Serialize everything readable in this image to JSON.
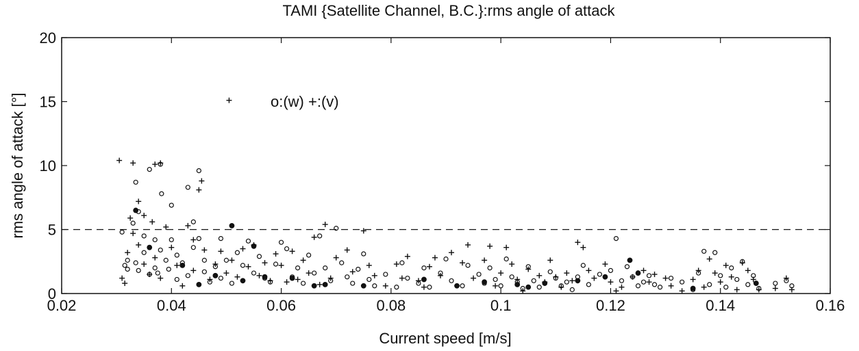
{
  "chart_data": {
    "type": "scatter",
    "title": "TAMI {Satellite Channel, B.C.}:rms angle of attack",
    "xlabel": "Current speed  [m/s]",
    "ylabel": "rms angle of attack  [°]",
    "xlim": [
      0.02,
      0.16
    ],
    "ylim": [
      0,
      20
    ],
    "x_ticks": [
      "0.02",
      "0.04",
      "0.06",
      "0.08",
      "0.1",
      "0.12",
      "0.14",
      "0.16"
    ],
    "y_ticks": [
      "0",
      "5",
      "10",
      "15",
      "20"
    ],
    "reference_line": {
      "y": 5,
      "style": "dashed"
    },
    "legend": {
      "text": "o:(w)  +:(v)",
      "plus_marker_at": [
        0.0505,
        15.1
      ],
      "position": "upper-center"
    },
    "colors": {
      "marker": "#111111",
      "axes": "#111111",
      "background": "#ffffff"
    },
    "series": [
      {
        "label": "w",
        "marker": "o",
        "points": [
          [
            0.031,
            4.8
          ],
          [
            0.0315,
            2.2
          ],
          [
            0.032,
            2.6
          ],
          [
            0.032,
            1.9
          ],
          [
            0.033,
            5.5
          ],
          [
            0.0335,
            8.7
          ],
          [
            0.0335,
            2.4
          ],
          [
            0.034,
            6.4
          ],
          [
            0.034,
            1.8
          ],
          [
            0.035,
            4.5
          ],
          [
            0.035,
            3.2
          ],
          [
            0.036,
            9.7
          ],
          [
            0.036,
            1.5
          ],
          [
            0.037,
            4.2
          ],
          [
            0.037,
            2.0
          ],
          [
            0.0375,
            1.6
          ],
          [
            0.038,
            10.1
          ],
          [
            0.0382,
            7.8
          ],
          [
            0.038,
            3.4
          ],
          [
            0.039,
            2.6
          ],
          [
            0.0395,
            1.9
          ],
          [
            0.04,
            6.9
          ],
          [
            0.04,
            4.2
          ],
          [
            0.041,
            3.0
          ],
          [
            0.041,
            1.1
          ],
          [
            0.042,
            2.4
          ],
          [
            0.043,
            8.3
          ],
          [
            0.043,
            1.4
          ],
          [
            0.044,
            5.6
          ],
          [
            0.044,
            3.6
          ],
          [
            0.045,
            9.6
          ],
          [
            0.045,
            4.3
          ],
          [
            0.046,
            2.6
          ],
          [
            0.046,
            1.7
          ],
          [
            0.047,
            0.9
          ],
          [
            0.048,
            2.1
          ],
          [
            0.049,
            4.3
          ],
          [
            0.049,
            1.2
          ],
          [
            0.05,
            2.6
          ],
          [
            0.051,
            0.8
          ],
          [
            0.052,
            3.2
          ],
          [
            0.053,
            2.2
          ],
          [
            0.054,
            4.1
          ],
          [
            0.055,
            1.6
          ],
          [
            0.056,
            2.9
          ],
          [
            0.057,
            1.2
          ],
          [
            0.058,
            0.9
          ],
          [
            0.059,
            2.3
          ],
          [
            0.06,
            4.0
          ],
          [
            0.061,
            3.5
          ],
          [
            0.062,
            1.3
          ],
          [
            0.063,
            2.0
          ],
          [
            0.064,
            0.8
          ],
          [
            0.065,
            3.0
          ],
          [
            0.066,
            1.6
          ],
          [
            0.067,
            4.5
          ],
          [
            0.068,
            2.0
          ],
          [
            0.069,
            1.0
          ],
          [
            0.07,
            5.1
          ],
          [
            0.071,
            2.4
          ],
          [
            0.072,
            1.3
          ],
          [
            0.073,
            0.8
          ],
          [
            0.074,
            1.9
          ],
          [
            0.075,
            3.1
          ],
          [
            0.076,
            1.1
          ],
          [
            0.077,
            0.6
          ],
          [
            0.079,
            1.5
          ],
          [
            0.081,
            0.5
          ],
          [
            0.082,
            2.4
          ],
          [
            0.083,
            1.2
          ],
          [
            0.085,
            0.8
          ],
          [
            0.086,
            2.0
          ],
          [
            0.087,
            0.5
          ],
          [
            0.089,
            1.6
          ],
          [
            0.09,
            2.7
          ],
          [
            0.091,
            1.0
          ],
          [
            0.093,
            0.6
          ],
          [
            0.094,
            2.2
          ],
          [
            0.096,
            1.5
          ],
          [
            0.097,
            0.8
          ],
          [
            0.098,
            2.0
          ],
          [
            0.099,
            1.1
          ],
          [
            0.1,
            0.6
          ],
          [
            0.101,
            2.7
          ],
          [
            0.102,
            1.3
          ],
          [
            0.103,
            0.9
          ],
          [
            0.104,
            0.4
          ],
          [
            0.105,
            2.1
          ],
          [
            0.106,
            1.0
          ],
          [
            0.107,
            0.5
          ],
          [
            0.109,
            1.7
          ],
          [
            0.11,
            1.2
          ],
          [
            0.111,
            0.6
          ],
          [
            0.112,
            0.9
          ],
          [
            0.113,
            0.3
          ],
          [
            0.114,
            1.3
          ],
          [
            0.115,
            2.2
          ],
          [
            0.116,
            0.7
          ],
          [
            0.118,
            1.5
          ],
          [
            0.12,
            1.8
          ],
          [
            0.121,
            4.3
          ],
          [
            0.122,
            1.0
          ],
          [
            0.123,
            2.1
          ],
          [
            0.124,
            1.3
          ],
          [
            0.125,
            0.6
          ],
          [
            0.126,
            0.9
          ],
          [
            0.127,
            1.4
          ],
          [
            0.128,
            0.7
          ],
          [
            0.129,
            0.5
          ],
          [
            0.131,
            1.2
          ],
          [
            0.133,
            0.9
          ],
          [
            0.135,
            0.3
          ],
          [
            0.136,
            1.6
          ],
          [
            0.137,
            3.3
          ],
          [
            0.138,
            0.7
          ],
          [
            0.139,
            3.2
          ],
          [
            0.14,
            1.4
          ],
          [
            0.141,
            0.5
          ],
          [
            0.142,
            2.0
          ],
          [
            0.143,
            1.1
          ],
          [
            0.144,
            2.5
          ],
          [
            0.145,
            0.7
          ],
          [
            0.146,
            1.4
          ],
          [
            0.147,
            0.4
          ],
          [
            0.15,
            0.8
          ],
          [
            0.152,
            1.0
          ],
          [
            0.153,
            0.6
          ]
        ]
      },
      {
        "label": "w-filled",
        "marker": "filled-circle",
        "points": [
          [
            0.0335,
            6.5
          ],
          [
            0.036,
            3.6
          ],
          [
            0.042,
            2.2
          ],
          [
            0.045,
            0.7
          ],
          [
            0.048,
            1.4
          ],
          [
            0.051,
            5.3
          ],
          [
            0.053,
            1.0
          ],
          [
            0.055,
            3.7
          ],
          [
            0.057,
            1.3
          ],
          [
            0.062,
            1.2
          ],
          [
            0.066,
            0.6
          ],
          [
            0.068,
            0.7
          ],
          [
            0.075,
            0.6
          ],
          [
            0.086,
            1.1
          ],
          [
            0.092,
            0.6
          ],
          [
            0.097,
            0.9
          ],
          [
            0.103,
            0.7
          ],
          [
            0.105,
            0.5
          ],
          [
            0.108,
            0.8
          ],
          [
            0.114,
            1.0
          ],
          [
            0.119,
            1.3
          ],
          [
            0.1235,
            2.6
          ],
          [
            0.125,
            1.6
          ],
          [
            0.135,
            0.4
          ],
          [
            0.1465,
            0.8
          ]
        ]
      },
      {
        "label": "v",
        "marker": "+",
        "points": [
          [
            0.0305,
            10.4
          ],
          [
            0.031,
            1.2
          ],
          [
            0.0315,
            0.8
          ],
          [
            0.032,
            3.2
          ],
          [
            0.0325,
            5.9
          ],
          [
            0.033,
            10.2
          ],
          [
            0.033,
            4.7
          ],
          [
            0.034,
            7.2
          ],
          [
            0.034,
            3.8
          ],
          [
            0.035,
            2.3
          ],
          [
            0.035,
            6.1
          ],
          [
            0.036,
            1.5
          ],
          [
            0.0365,
            5.6
          ],
          [
            0.037,
            10.1
          ],
          [
            0.037,
            2.8
          ],
          [
            0.038,
            1.2
          ],
          [
            0.038,
            10.2
          ],
          [
            0.039,
            5.2
          ],
          [
            0.04,
            3.6
          ],
          [
            0.041,
            2.2
          ],
          [
            0.042,
            0.6
          ],
          [
            0.043,
            5.3
          ],
          [
            0.044,
            4.2
          ],
          [
            0.044,
            1.8
          ],
          [
            0.045,
            8.1
          ],
          [
            0.0455,
            8.8
          ],
          [
            0.046,
            3.4
          ],
          [
            0.047,
            1.1
          ],
          [
            0.048,
            2.3
          ],
          [
            0.049,
            3.3
          ],
          [
            0.05,
            1.6
          ],
          [
            0.051,
            2.6
          ],
          [
            0.052,
            1.3
          ],
          [
            0.053,
            3.5
          ],
          [
            0.054,
            2.1
          ],
          [
            0.055,
            3.8
          ],
          [
            0.056,
            1.4
          ],
          [
            0.057,
            2.4
          ],
          [
            0.058,
            1.0
          ],
          [
            0.059,
            3.1
          ],
          [
            0.06,
            2.2
          ],
          [
            0.061,
            0.9
          ],
          [
            0.062,
            3.3
          ],
          [
            0.063,
            1.1
          ],
          [
            0.064,
            2.6
          ],
          [
            0.065,
            1.6
          ],
          [
            0.066,
            4.4
          ],
          [
            0.067,
            0.7
          ],
          [
            0.068,
            5.4
          ],
          [
            0.069,
            1.2
          ],
          [
            0.07,
            2.8
          ],
          [
            0.072,
            3.4
          ],
          [
            0.073,
            1.7
          ],
          [
            0.075,
            4.9
          ],
          [
            0.076,
            2.2
          ],
          [
            0.077,
            1.4
          ],
          [
            0.079,
            0.6
          ],
          [
            0.081,
            2.3
          ],
          [
            0.082,
            1.2
          ],
          [
            0.083,
            2.9
          ],
          [
            0.085,
            1.0
          ],
          [
            0.086,
            0.5
          ],
          [
            0.087,
            2.1
          ],
          [
            0.088,
            2.8
          ],
          [
            0.089,
            1.4
          ],
          [
            0.091,
            3.2
          ],
          [
            0.093,
            2.4
          ],
          [
            0.094,
            3.8
          ],
          [
            0.095,
            1.2
          ],
          [
            0.097,
            2.6
          ],
          [
            0.098,
            3.7
          ],
          [
            0.099,
            0.6
          ],
          [
            0.1,
            1.6
          ],
          [
            0.101,
            3.6
          ],
          [
            0.102,
            2.3
          ],
          [
            0.103,
            1.1
          ],
          [
            0.104,
            0.2
          ],
          [
            0.105,
            1.9
          ],
          [
            0.107,
            1.4
          ],
          [
            0.108,
            0.9
          ],
          [
            0.109,
            2.6
          ],
          [
            0.11,
            1.3
          ],
          [
            0.111,
            0.5
          ],
          [
            0.112,
            1.6
          ],
          [
            0.113,
            1.0
          ],
          [
            0.114,
            4.0
          ],
          [
            0.115,
            3.6
          ],
          [
            0.116,
            1.8
          ],
          [
            0.117,
            1.2
          ],
          [
            0.119,
            2.3
          ],
          [
            0.12,
            0.9
          ],
          [
            0.121,
            0.2
          ],
          [
            0.122,
            0.5
          ],
          [
            0.124,
            1.3
          ],
          [
            0.126,
            1.8
          ],
          [
            0.127,
            0.9
          ],
          [
            0.128,
            1.5
          ],
          [
            0.13,
            1.2
          ],
          [
            0.131,
            0.6
          ],
          [
            0.133,
            0.2
          ],
          [
            0.135,
            1.1
          ],
          [
            0.136,
            1.8
          ],
          [
            0.137,
            0.5
          ],
          [
            0.138,
            2.7
          ],
          [
            0.139,
            1.6
          ],
          [
            0.14,
            0.9
          ],
          [
            0.141,
            2.2
          ],
          [
            0.142,
            1.3
          ],
          [
            0.143,
            0.3
          ],
          [
            0.144,
            2.4
          ],
          [
            0.145,
            1.8
          ],
          [
            0.146,
            1.1
          ],
          [
            0.147,
            0.3
          ],
          [
            0.15,
            0.4
          ],
          [
            0.152,
            1.2
          ],
          [
            0.153,
            0.3
          ]
        ]
      }
    ]
  }
}
